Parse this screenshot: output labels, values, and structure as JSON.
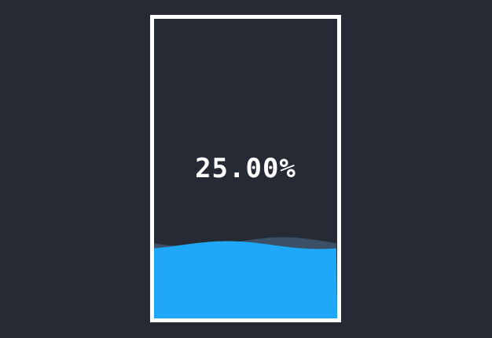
{
  "progress": {
    "value": 0.25,
    "label": "25.00%"
  },
  "colors": {
    "background": "#252a34",
    "border": "#ffffff",
    "water": "#1fa8f7",
    "wave_back": "#4f6f92",
    "text": "#ffffff"
  }
}
